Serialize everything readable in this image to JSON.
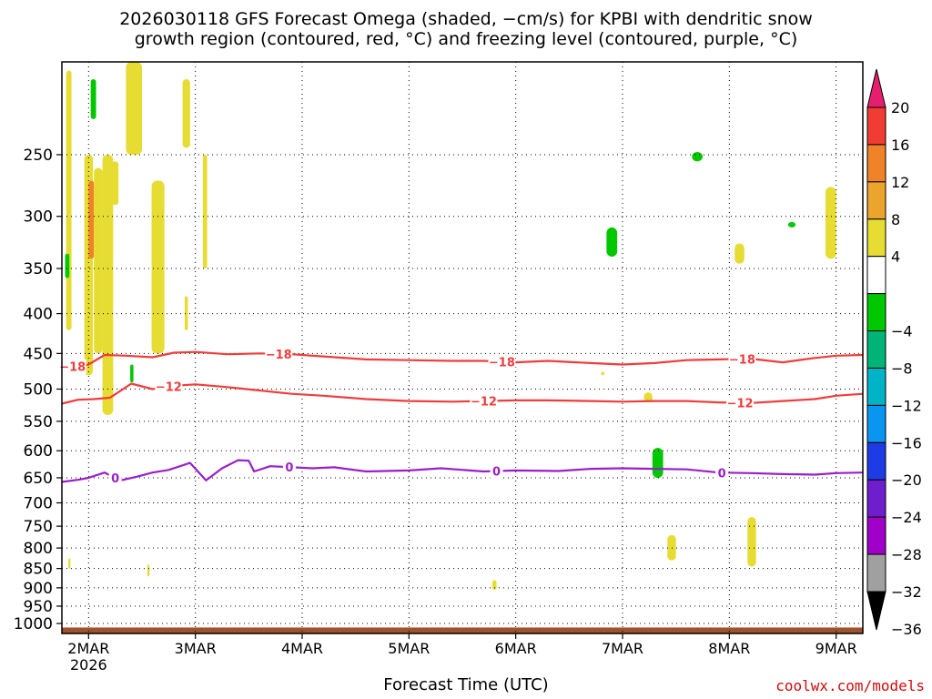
{
  "title": {
    "line1": "2026030118 GFS Forecast Omega (shaded, −cm/s) for KPBI with dendritic snow",
    "line2": "growth region (contoured, red, °C) and freezing level (contoured, purple, °C)"
  },
  "credit": "coolwx.com/models",
  "chart_data": {
    "type": "heatmap",
    "xlabel": "Forecast Time (UTC)",
    "ylabel": "",
    "x_tick_labels": [
      "2MAR",
      "3MAR",
      "4MAR",
      "5MAR",
      "6MAR",
      "7MAR",
      "8MAR",
      "9MAR"
    ],
    "x_tick_days": [
      1.0,
      2.0,
      3.0,
      4.0,
      5.0,
      6.0,
      7.0,
      8.0
    ],
    "x_year_label": "2026",
    "xlim_days": [
      0.75,
      8.25
    ],
    "y_ticks": [
      250,
      300,
      350,
      400,
      450,
      500,
      550,
      600,
      650,
      700,
      750,
      800,
      850,
      900,
      950,
      1000
    ],
    "ylim": [
      1030,
      190
    ],
    "y_scale": "log",
    "grid": true,
    "colorbar": {
      "labels": [
        "20",
        "16",
        "12",
        "8",
        "4",
        "−4",
        "−8",
        "−12",
        "−16",
        "−20",
        "−24",
        "−28",
        "−32",
        "−36"
      ],
      "colors": [
        "#e61e6e",
        "#f03c32",
        "#f08228",
        "#eba52d",
        "#e6dc32",
        "#ffffff",
        "#00c800",
        "#00b478",
        "#00b4c8",
        "#0a96f0",
        "#1e3ce6",
        "#6e1ecd",
        "#a000c8",
        "#a0a0a0",
        "#000000"
      ]
    },
    "shading": [
      {
        "t0": 0.79,
        "t1": 0.84,
        "p0": 195,
        "p1": 420,
        "val": 4
      },
      {
        "t0": 0.96,
        "t1": 1.04,
        "p0": 250,
        "p1": 480,
        "val": 4
      },
      {
        "t0": 1.0,
        "t1": 1.05,
        "p0": 270,
        "p1": 340,
        "val": 12
      },
      {
        "t0": 1.05,
        "t1": 1.13,
        "p0": 260,
        "p1": 450,
        "val": 4
      },
      {
        "t0": 1.13,
        "t1": 1.23,
        "p0": 250,
        "p1": 540,
        "val": 4
      },
      {
        "t0": 1.22,
        "t1": 1.28,
        "p0": 255,
        "p1": 290,
        "val": 4
      },
      {
        "t0": 1.35,
        "t1": 1.5,
        "p0": 190,
        "p1": 250,
        "val": 4
      },
      {
        "t0": 1.59,
        "t1": 1.71,
        "p0": 270,
        "p1": 450,
        "val": 4
      },
      {
        "t0": 1.88,
        "t1": 1.95,
        "p0": 200,
        "p1": 245,
        "val": 4
      },
      {
        "t0": 1.9,
        "t1": 1.93,
        "p0": 380,
        "p1": 420,
        "val": 4
      },
      {
        "t0": 2.07,
        "t1": 2.11,
        "p0": 250,
        "p1": 350,
        "val": 4
      },
      {
        "t0": 5.8,
        "t1": 5.83,
        "p0": 475,
        "p1": 480,
        "val": 4
      },
      {
        "t0": 6.2,
        "t1": 6.28,
        "p0": 505,
        "p1": 520,
        "val": 4
      },
      {
        "t0": 6.42,
        "t1": 6.5,
        "p0": 770,
        "p1": 830,
        "val": 4
      },
      {
        "t0": 7.05,
        "t1": 7.14,
        "p0": 325,
        "p1": 345,
        "val": 4
      },
      {
        "t0": 7.17,
        "t1": 7.25,
        "p0": 730,
        "p1": 845,
        "val": 4
      },
      {
        "t0": 7.9,
        "t1": 8.0,
        "p0": 275,
        "p1": 340,
        "val": 4
      },
      {
        "t0": 4.78,
        "t1": 4.82,
        "p0": 880,
        "p1": 905,
        "val": 4
      },
      {
        "t0": 0.81,
        "t1": 0.83,
        "p0": 825,
        "p1": 850,
        "val": 4
      },
      {
        "t0": 1.55,
        "t1": 1.57,
        "p0": 840,
        "p1": 870,
        "val": 4
      },
      {
        "t0": 1.2,
        "t1": 1.23,
        "p0": 470,
        "p1": 510,
        "val": 4
      },
      {
        "t0": 1.02,
        "t1": 1.07,
        "p0": 200,
        "p1": 225,
        "val": -4
      },
      {
        "t0": 0.78,
        "t1": 0.82,
        "p0": 335,
        "p1": 360,
        "val": -4
      },
      {
        "t0": 1.39,
        "t1": 1.42,
        "p0": 465,
        "p1": 490,
        "val": -4
      },
      {
        "t0": 5.85,
        "t1": 5.95,
        "p0": 310,
        "p1": 338,
        "val": -4
      },
      {
        "t0": 6.28,
        "t1": 6.38,
        "p0": 595,
        "p1": 650,
        "val": -4
      },
      {
        "t0": 6.65,
        "t1": 6.75,
        "p0": 248,
        "p1": 255,
        "val": -4
      },
      {
        "t0": 7.55,
        "t1": 7.62,
        "p0": 305,
        "p1": 310,
        "val": -4
      }
    ],
    "series": [
      {
        "name": "",
        "label": "−18",
        "color": "#f03c3c",
        "label_at_days": [
          0.85,
          2.78,
          4.87,
          7.12
        ],
        "x": [
          0.75,
          0.9,
          1.0,
          1.15,
          1.35,
          1.6,
          1.8,
          2.0,
          2.3,
          2.6,
          2.9,
          3.2,
          3.6,
          4.0,
          4.4,
          4.7,
          5.0,
          5.3,
          5.7,
          6.0,
          6.3,
          6.6,
          6.9,
          7.2,
          7.5,
          7.8,
          8.0,
          8.25
        ],
        "y": [
          467,
          468,
          465,
          452,
          453,
          455,
          449,
          448,
          451,
          450,
          451,
          454,
          458,
          459,
          460,
          460,
          462,
          460,
          463,
          465,
          463,
          459,
          458,
          457,
          462,
          456,
          453,
          452
        ]
      },
      {
        "name": "",
        "label": "−12",
        "color": "#f03c3c",
        "label_at_days": [
          1.75,
          4.7,
          7.1
        ],
        "x": [
          0.75,
          0.9,
          1.05,
          1.2,
          1.4,
          1.6,
          1.8,
          2.0,
          2.3,
          2.6,
          2.9,
          3.2,
          3.6,
          4.0,
          4.4,
          4.7,
          5.0,
          5.3,
          5.7,
          6.0,
          6.3,
          6.6,
          6.9,
          7.2,
          7.5,
          7.8,
          8.0,
          8.25
        ],
        "y": [
          522,
          516,
          515,
          513,
          492,
          500,
          495,
          493,
          497,
          502,
          507,
          510,
          515,
          518,
          519,
          518,
          517,
          517,
          518,
          519,
          518,
          518,
          520,
          521,
          518,
          515,
          510,
          507
        ]
      },
      {
        "name": "",
        "label": "0",
        "color": "#9b1ec8",
        "label_at_days": [
          1.25,
          2.88,
          4.82,
          6.93
        ],
        "x": [
          0.75,
          0.9,
          1.0,
          1.15,
          1.3,
          1.45,
          1.6,
          1.75,
          1.95,
          2.1,
          2.25,
          2.4,
          2.5,
          2.55,
          2.7,
          2.9,
          3.1,
          3.3,
          3.6,
          4.0,
          4.3,
          4.7,
          5.0,
          5.4,
          5.7,
          6.0,
          6.3,
          6.6,
          6.9,
          7.2,
          7.5,
          7.8,
          8.0,
          8.25
        ],
        "y": [
          658,
          654,
          650,
          640,
          655,
          648,
          640,
          635,
          622,
          655,
          632,
          617,
          618,
          638,
          628,
          630,
          632,
          630,
          638,
          636,
          632,
          638,
          636,
          637,
          633,
          632,
          633,
          634,
          640,
          641,
          643,
          644,
          641,
          640
        ]
      }
    ]
  }
}
